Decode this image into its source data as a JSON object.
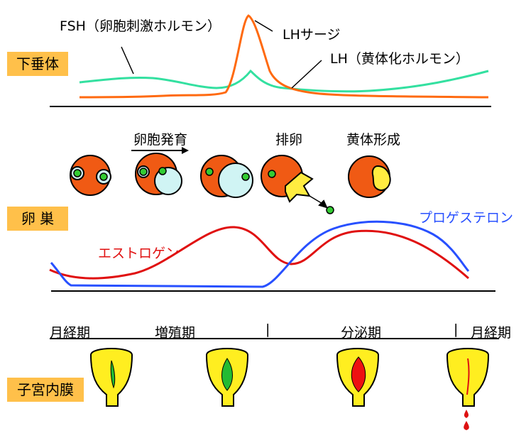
{
  "sections": {
    "pituitary": "下垂体",
    "ovary": "卵 巣",
    "endometrium": "子宮内膜"
  },
  "hormones": {
    "fsh": "FSH（卵胞刺激ホルモン）",
    "lh_surge": "LHサージ",
    "lh": "LH（黄体化ホルモン）",
    "estrogen": "エストロゲン",
    "progesterone": "プロゲステロン"
  },
  "ovary_stages": {
    "follicle_growth": "卵胞発育",
    "ovulation": "排卵",
    "corpus_luteum": "黄体形成"
  },
  "phases": {
    "menstrual_start": "月経期",
    "proliferative": "増殖期",
    "secretory": "分泌期",
    "menstrual_end": "月経期",
    "separator": "|"
  },
  "colors": {
    "fsh": "#33e0a0",
    "lh": "#ff6a10",
    "estrogen": "#e01010",
    "progesterone": "#2850ff",
    "label_box": "#ffc04a",
    "ovary": "#f05a14",
    "follicle": "#d0f4f4",
    "oocyte": "#33cc33",
    "corpus_luteum": "#ffec40",
    "uterus": "#ffee20",
    "lining_prolif": "#22bb33",
    "lining_secret": "#ee1111",
    "blood": "#dd1111"
  }
}
